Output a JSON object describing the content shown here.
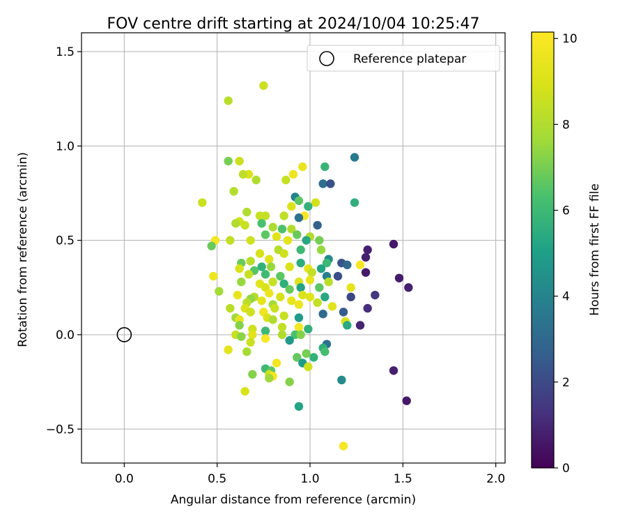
{
  "chart_data": {
    "type": "scatter",
    "title": "FOV centre drift starting at 2024/10/04 10:25:47",
    "xlabel": "Angular distance from reference (arcmin)",
    "ylabel": "Rotation from reference (arcmin)",
    "xlim": [
      -0.23,
      2.05
    ],
    "ylim": [
      -0.68,
      1.6
    ],
    "xticks": [
      0.0,
      0.5,
      1.0,
      1.5,
      2.0
    ],
    "xtick_labels": [
      "0.0",
      "0.5",
      "1.0",
      "1.5",
      "2.0"
    ],
    "yticks": [
      -0.5,
      0.0,
      0.5,
      1.0,
      1.5
    ],
    "ytick_labels": [
      "−0.5",
      "0.0",
      "0.5",
      "1.0",
      "1.5"
    ],
    "grid": true,
    "legend": {
      "position": "top-right",
      "entries": [
        "Reference platepar"
      ]
    },
    "reference_point": {
      "x": 0.0,
      "y": 0.0
    },
    "colorbar": {
      "label": "Hours from first FF file",
      "colormap": "viridis",
      "range": [
        0,
        10.15
      ],
      "ticks": [
        0,
        2,
        4,
        6,
        8,
        10
      ],
      "tick_labels": [
        "0",
        "2",
        "4",
        "6",
        "8",
        "10"
      ]
    },
    "points": [
      [
        0.75,
        1.32,
        8.6
      ],
      [
        0.56,
        1.24,
        8.2
      ],
      [
        0.56,
        0.92,
        7.0
      ],
      [
        0.62,
        0.92,
        8.6
      ],
      [
        0.67,
        0.85,
        9.0
      ],
      [
        0.64,
        0.85,
        8.3
      ],
      [
        0.71,
        0.82,
        8.0
      ],
      [
        0.87,
        0.82,
        8.5
      ],
      [
        0.91,
        0.85,
        9.6
      ],
      [
        0.96,
        0.89,
        9.5
      ],
      [
        1.08,
        0.89,
        5.8
      ],
      [
        1.24,
        0.94,
        3.6
      ],
      [
        1.07,
        0.8,
        3.2
      ],
      [
        1.11,
        0.8,
        2.2
      ],
      [
        0.59,
        0.76,
        8.1
      ],
      [
        0.42,
        0.7,
        8.6
      ],
      [
        0.92,
        0.73,
        3.9
      ],
      [
        0.94,
        0.71,
        6.6
      ],
      [
        1.03,
        0.7,
        8.8
      ],
      [
        1.24,
        0.7,
        5.6
      ],
      [
        0.9,
        0.68,
        9.0
      ],
      [
        0.99,
        0.68,
        5.7
      ],
      [
        0.66,
        0.65,
        8.0
      ],
      [
        0.73,
        0.63,
        8.5
      ],
      [
        0.76,
        0.63,
        8.4
      ],
      [
        0.86,
        0.63,
        8.3
      ],
      [
        0.97,
        0.63,
        9.9
      ],
      [
        0.94,
        0.62,
        3.3
      ],
      [
        0.62,
        0.6,
        8.8
      ],
      [
        0.6,
        0.59,
        8.0
      ],
      [
        0.74,
        0.59,
        6.3
      ],
      [
        0.65,
        0.58,
        8.5
      ],
      [
        0.8,
        0.57,
        7.9
      ],
      [
        0.85,
        0.56,
        6.4
      ],
      [
        0.9,
        0.56,
        8.0
      ],
      [
        1.04,
        0.58,
        2.8
      ],
      [
        0.76,
        0.53,
        6.6
      ],
      [
        0.82,
        0.52,
        9.2
      ],
      [
        0.93,
        0.53,
        6.8
      ],
      [
        1.0,
        0.52,
        8.0
      ],
      [
        0.49,
        0.5,
        9.8
      ],
      [
        0.57,
        0.5,
        8.4
      ],
      [
        0.68,
        0.5,
        8.7
      ],
      [
        0.88,
        0.5,
        9.3
      ],
      [
        0.98,
        0.5,
        5.3
      ],
      [
        1.05,
        0.5,
        7.0
      ],
      [
        1.45,
        0.48,
        0.6
      ],
      [
        0.47,
        0.47,
        6.8
      ],
      [
        1.31,
        0.45,
        0.8
      ],
      [
        1.06,
        0.45,
        7.5
      ],
      [
        0.95,
        0.45,
        6.0
      ],
      [
        0.83,
        0.45,
        8.1
      ],
      [
        0.86,
        0.43,
        8.7
      ],
      [
        0.73,
        0.43,
        8.9
      ],
      [
        1.3,
        0.41,
        0.8
      ],
      [
        1.1,
        0.4,
        4.3
      ],
      [
        0.78,
        0.4,
        9.2
      ],
      [
        0.68,
        0.39,
        8.2
      ],
      [
        0.63,
        0.38,
        6.8
      ],
      [
        0.95,
        0.38,
        5.5
      ],
      [
        1.09,
        0.38,
        6.0
      ],
      [
        1.17,
        0.38,
        2.3
      ],
      [
        1.2,
        0.37,
        3.0
      ],
      [
        1.27,
        0.37,
        9.9
      ],
      [
        0.74,
        0.36,
        5.7
      ],
      [
        0.79,
        0.36,
        7.5
      ],
      [
        0.89,
        0.36,
        9.0
      ],
      [
        0.99,
        0.35,
        9.4
      ],
      [
        1.06,
        0.35,
        5.2
      ],
      [
        0.62,
        0.35,
        8.9
      ],
      [
        0.7,
        0.34,
        6.5
      ],
      [
        1.01,
        0.33,
        8.4
      ],
      [
        1.3,
        0.33,
        0.6
      ],
      [
        0.67,
        0.32,
        8.5
      ],
      [
        0.76,
        0.32,
        6.1
      ],
      [
        0.84,
        0.31,
        6.6
      ],
      [
        0.48,
        0.31,
        9.6
      ],
      [
        1.09,
        0.31,
        3.8
      ],
      [
        1.15,
        0.31,
        2.1
      ],
      [
        1.48,
        0.3,
        0.7
      ],
      [
        0.63,
        0.28,
        7.5
      ],
      [
        0.8,
        0.28,
        8.5
      ],
      [
        0.94,
        0.28,
        9.0
      ],
      [
        1.0,
        0.29,
        9.4
      ],
      [
        1.1,
        0.28,
        8.2
      ],
      [
        0.73,
        0.27,
        9.2
      ],
      [
        0.86,
        0.27,
        5.6
      ],
      [
        0.76,
        0.25,
        8.9
      ],
      [
        0.89,
        0.24,
        6.8
      ],
      [
        0.95,
        0.25,
        5.2
      ],
      [
        1.05,
        0.25,
        6.6
      ],
      [
        1.22,
        0.25,
        9.3
      ],
      [
        1.53,
        0.25,
        0.8
      ],
      [
        0.51,
        0.23,
        7.7
      ],
      [
        0.78,
        0.22,
        9.6
      ],
      [
        0.96,
        0.21,
        9.0
      ],
      [
        0.61,
        0.21,
        9.5
      ],
      [
        0.7,
        0.2,
        8.1
      ],
      [
        0.84,
        0.2,
        8.9
      ],
      [
        1.0,
        0.2,
        9.1
      ],
      [
        1.08,
        0.2,
        5.3
      ],
      [
        1.22,
        0.2,
        1.9
      ],
      [
        1.35,
        0.21,
        1.4
      ],
      [
        0.68,
        0.19,
        7.4
      ],
      [
        0.74,
        0.18,
        9.3
      ],
      [
        0.9,
        0.18,
        9.4
      ],
      [
        1.04,
        0.17,
        8.4
      ],
      [
        0.66,
        0.17,
        8.2
      ],
      [
        0.8,
        0.16,
        7.7
      ],
      [
        0.94,
        0.16,
        9.6
      ],
      [
        1.12,
        0.15,
        9.2
      ],
      [
        0.57,
        0.14,
        8.2
      ],
      [
        0.65,
        0.14,
        9.0
      ],
      [
        0.81,
        0.14,
        8.6
      ],
      [
        1.18,
        0.12,
        2.5
      ],
      [
        1.31,
        0.14,
        1.2
      ],
      [
        0.68,
        0.12,
        8.7
      ],
      [
        0.75,
        0.12,
        9.7
      ],
      [
        0.86,
        0.1,
        8.5
      ],
      [
        1.07,
        0.11,
        3.1
      ],
      [
        0.6,
        0.09,
        7.6
      ],
      [
        0.77,
        0.09,
        9.0
      ],
      [
        0.94,
        0.09,
        4.8
      ],
      [
        0.62,
        0.08,
        9.4
      ],
      [
        0.8,
        0.08,
        8.0
      ],
      [
        1.19,
        0.07,
        8.9
      ],
      [
        1.2,
        0.05,
        5.4
      ],
      [
        1.27,
        0.05,
        0.9
      ],
      [
        0.62,
        0.05,
        7.2
      ],
      [
        0.85,
        0.04,
        8.4
      ],
      [
        0.94,
        0.04,
        9.8
      ],
      [
        0.69,
        0.03,
        8.7
      ],
      [
        0.76,
        0.02,
        6.0
      ],
      [
        0.99,
        0.03,
        5.7
      ],
      [
        0.6,
        0.0,
        8.5
      ],
      [
        0.63,
        -0.01,
        7.3
      ],
      [
        0.69,
        0.0,
        9.2
      ],
      [
        0.85,
        0.0,
        8.0
      ],
      [
        0.92,
        0.0,
        6.3
      ],
      [
        0.95,
        0.0,
        7.2
      ],
      [
        0.76,
        -0.02,
        9.9
      ],
      [
        0.89,
        -0.03,
        4.8
      ],
      [
        0.68,
        -0.04,
        8.6
      ],
      [
        1.09,
        -0.05,
        3.3
      ],
      [
        0.56,
        -0.08,
        9.3
      ],
      [
        0.66,
        -0.09,
        7.8
      ],
      [
        0.98,
        -0.1,
        7.0
      ],
      [
        1.07,
        -0.07,
        5.6
      ],
      [
        1.08,
        -0.09,
        6.2
      ],
      [
        0.93,
        -0.12,
        6.7
      ],
      [
        1.02,
        -0.12,
        5.7
      ],
      [
        0.82,
        -0.15,
        9.8
      ],
      [
        0.96,
        -0.15,
        4.9
      ],
      [
        0.99,
        -0.17,
        8.7
      ],
      [
        0.76,
        -0.18,
        6.0
      ],
      [
        0.79,
        -0.19,
        6.6
      ],
      [
        0.78,
        -0.21,
        8.7
      ],
      [
        0.8,
        -0.22,
        9.8
      ],
      [
        0.69,
        -0.21,
        7.2
      ],
      [
        0.78,
        -0.23,
        7.6
      ],
      [
        1.45,
        -0.19,
        0.8
      ],
      [
        1.17,
        -0.24,
        4.2
      ],
      [
        0.89,
        -0.25,
        7.2
      ],
      [
        0.65,
        -0.3,
        8.9
      ],
      [
        1.52,
        -0.35,
        0.6
      ],
      [
        0.94,
        -0.38,
        5.2
      ],
      [
        1.18,
        -0.59,
        9.9
      ]
    ]
  }
}
